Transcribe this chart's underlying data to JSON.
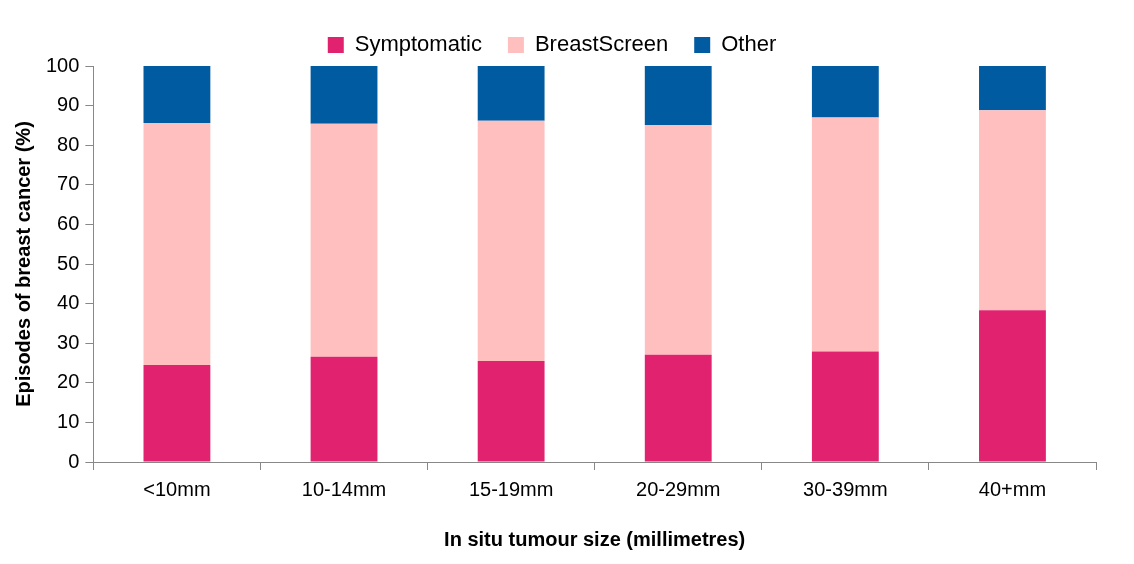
{
  "chart_data": {
    "type": "bar",
    "stacked": true,
    "xlabel": "In situ tumour size (millimetres)",
    "ylabel": "Episodes of breast cancer (%)",
    "categories": [
      "<10mm",
      "10-14mm",
      "15-19mm",
      "20-29mm",
      "30-39mm",
      "40+mm"
    ],
    "series": [
      {
        "name": "Symptomatic",
        "color": "#e0226f",
        "values": [
          24.5,
          26.6,
          25.5,
          27.1,
          27.9,
          38.3
        ]
      },
      {
        "name": "BreastScreen",
        "color": "#ffbfbf",
        "values": [
          61.1,
          58.8,
          60.7,
          58.0,
          59.1,
          50.5
        ]
      },
      {
        "name": "Other",
        "color": "#005ba1",
        "values": [
          14.4,
          14.6,
          13.8,
          14.9,
          13.0,
          11.2
        ]
      }
    ],
    "ylim": [
      0,
      100
    ],
    "yticks": [
      0,
      10,
      20,
      30,
      40,
      50,
      60,
      70,
      80,
      90,
      100
    ],
    "grid": false,
    "legend": "top"
  }
}
